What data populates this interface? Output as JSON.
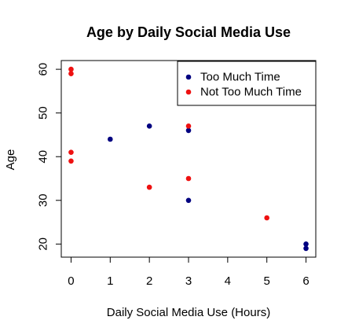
{
  "chart_data": {
    "type": "scatter",
    "title": "Age by Daily Social Media Use",
    "xlabel": "Daily Social Media Use (Hours)",
    "ylabel": "Age",
    "xlim": [
      -0.25,
      6.25
    ],
    "ylim": [
      17,
      62
    ],
    "x_ticks": [
      0,
      1,
      2,
      3,
      4,
      5,
      6
    ],
    "y_ticks": [
      20,
      30,
      40,
      50,
      60
    ],
    "grid": false,
    "legend_position": "top-right",
    "series": [
      {
        "name": "Too Much Time",
        "color": "#000080",
        "points": [
          {
            "x": 1,
            "y": 44
          },
          {
            "x": 2,
            "y": 47
          },
          {
            "x": 3,
            "y": 46
          },
          {
            "x": 3,
            "y": 30
          },
          {
            "x": 6,
            "y": 20
          },
          {
            "x": 6,
            "y": 19
          }
        ]
      },
      {
        "name": "Not Too Much Time",
        "color": "#ee1111",
        "points": [
          {
            "x": 0,
            "y": 60
          },
          {
            "x": 0,
            "y": 59
          },
          {
            "x": 0,
            "y": 41
          },
          {
            "x": 0,
            "y": 39
          },
          {
            "x": 2,
            "y": 33
          },
          {
            "x": 3,
            "y": 47
          },
          {
            "x": 3,
            "y": 35
          },
          {
            "x": 5,
            "y": 26
          }
        ]
      }
    ]
  }
}
